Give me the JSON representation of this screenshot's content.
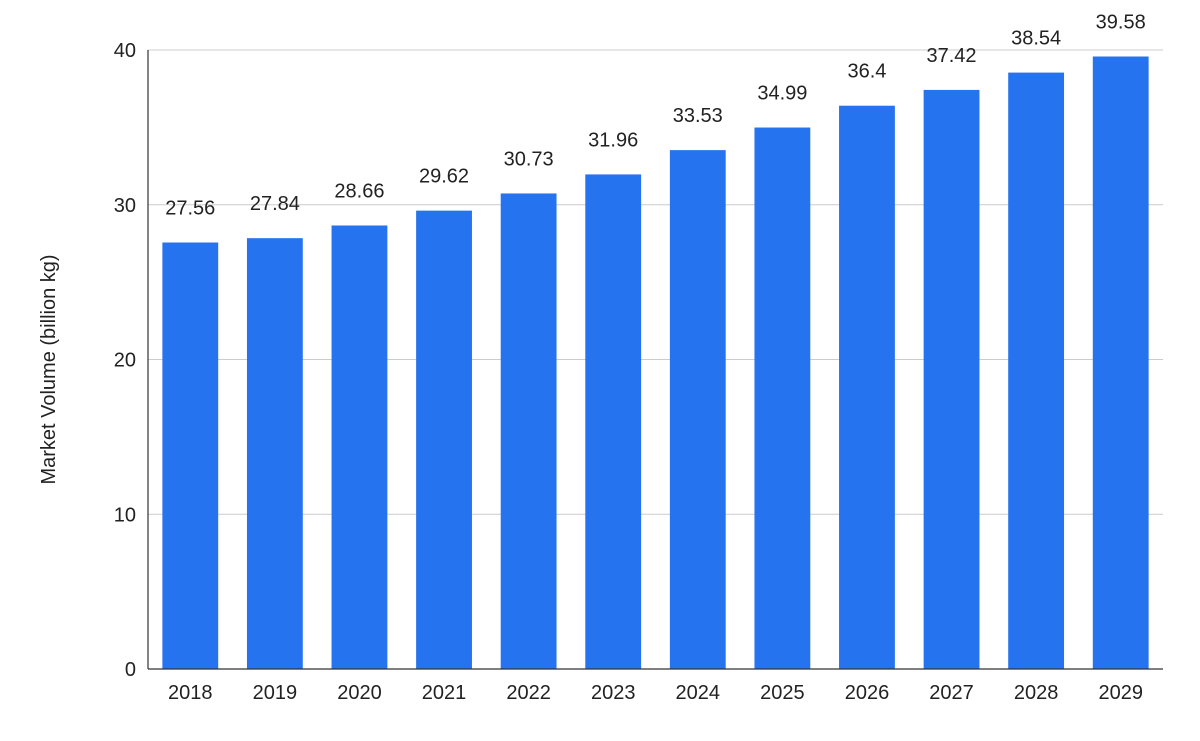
{
  "chart_data": {
    "type": "bar",
    "title": "",
    "xlabel": "",
    "ylabel": "Market Volume (billion kg)",
    "categories": [
      "2018",
      "2019",
      "2020",
      "2021",
      "2022",
      "2023",
      "2024",
      "2025",
      "2026",
      "2027",
      "2028",
      "2029"
    ],
    "series": [
      {
        "values": [
          27.56,
          27.84,
          28.66,
          29.62,
          30.73,
          31.96,
          33.53,
          34.99,
          36.4,
          37.42,
          38.54,
          39.58
        ],
        "data_labels": [
          "27.56",
          "27.84",
          "28.66",
          "29.62",
          "30.73",
          "31.96",
          "33.53",
          "34.99",
          "36.4",
          "37.42",
          "38.54",
          "39.58"
        ],
        "color": "#2573EE"
      }
    ],
    "ylim": [
      0,
      40
    ],
    "yticks": [
      0,
      10,
      20,
      30,
      40
    ],
    "ytick_labels": [
      "0",
      "10",
      "20",
      "30",
      "40"
    ],
    "grid": true,
    "gridline_color": "#CCCCCC",
    "axis_color": "#333333"
  }
}
